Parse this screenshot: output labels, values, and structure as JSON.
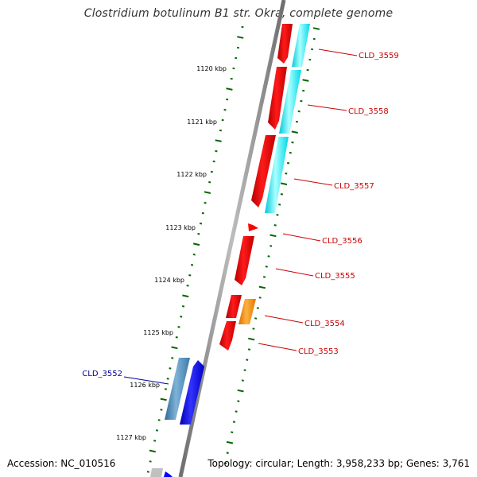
{
  "title": "Clostridium botulinum B1 str. Okra, complete genome",
  "footer": {
    "accession": "Accession: NC_010516",
    "summary": "Topology: circular; Length: 3,958,233 bp; Genes: 3,761"
  },
  "ticks": [
    {
      "label": "1120 kbp"
    },
    {
      "label": "1121 kbp"
    },
    {
      "label": "1122 kbp"
    },
    {
      "label": "1123 kbp"
    },
    {
      "label": "1124 kbp"
    },
    {
      "label": "1125 kbp"
    },
    {
      "label": "1126 kbp"
    },
    {
      "label": "1127 kbp"
    }
  ],
  "genes": [
    {
      "label": "CLD_3559",
      "color": "#cc0000"
    },
    {
      "label": "CLD_3558",
      "color": "#cc0000"
    },
    {
      "label": "CLD_3557",
      "color": "#cc0000"
    },
    {
      "label": "CLD_3556",
      "color": "#cc0000"
    },
    {
      "label": "CLD_3555",
      "color": "#cc0000"
    },
    {
      "label": "CLD_3554",
      "color": "#cc0000"
    },
    {
      "label": "CLD_3553",
      "color": "#cc0000"
    },
    {
      "label": "CLD_3552",
      "color": "#000099"
    }
  ],
  "colors": {
    "cds_forward": "#ff0000",
    "cds_reverse": "#0000ff",
    "annotation": "#00ffff",
    "annotation_reverse": "#4682b4",
    "orange_feature": "#ff8c00",
    "tick_marks": "#006600",
    "backbone": "#888888"
  }
}
